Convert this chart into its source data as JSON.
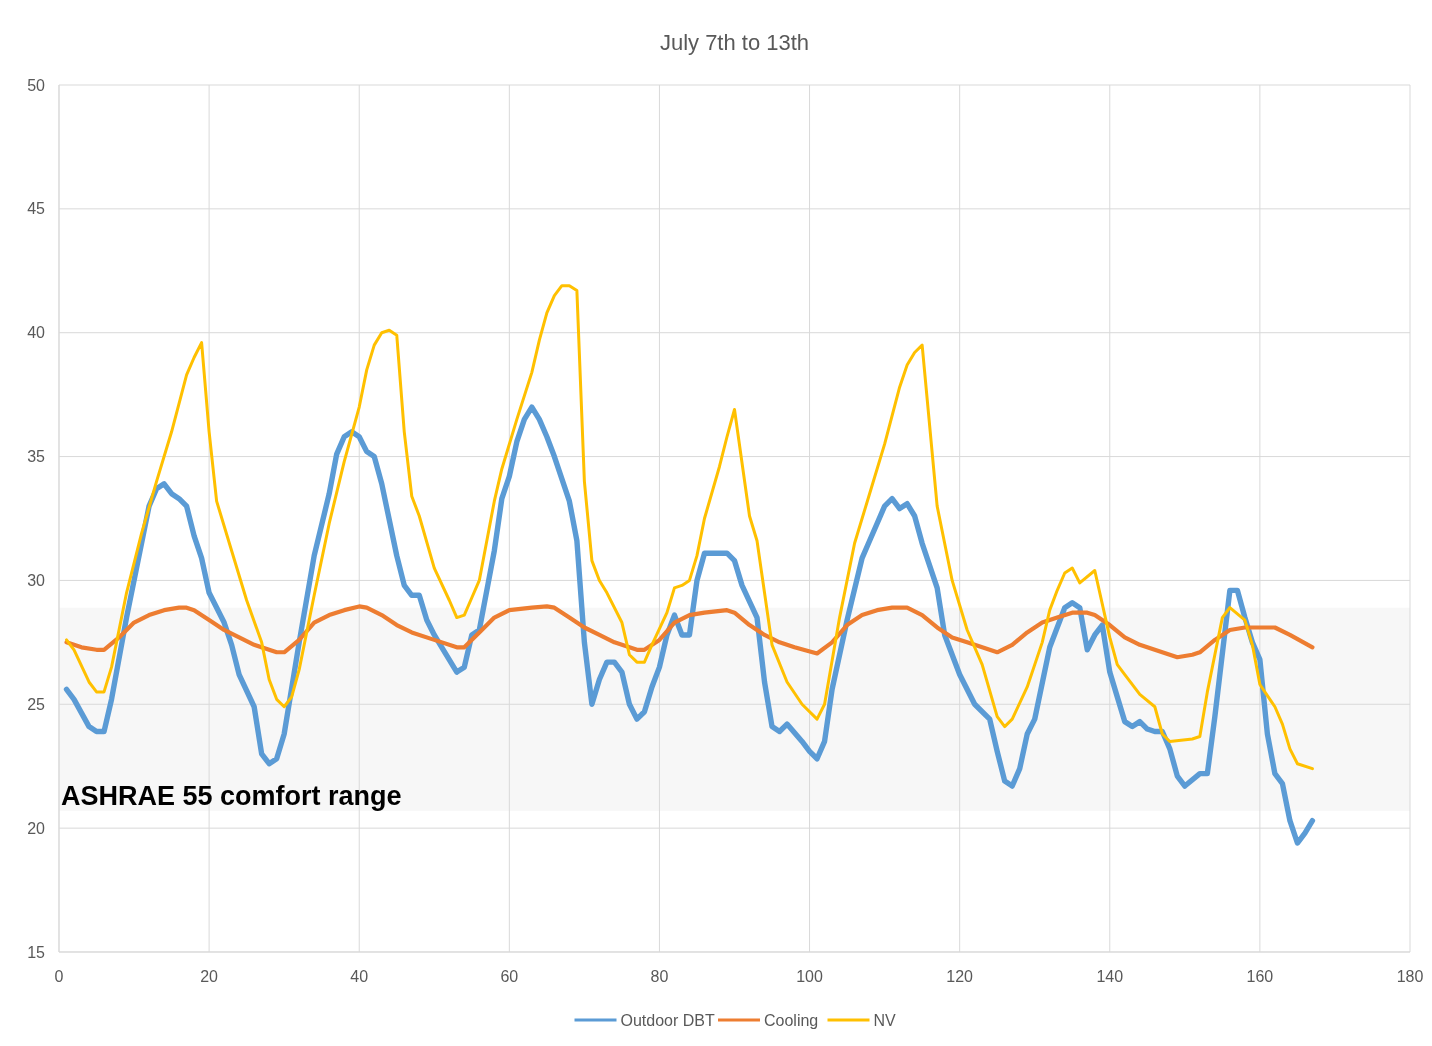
{
  "chart_data": {
    "type": "line",
    "title": "July 7th to 13th",
    "xlim": [
      0,
      180
    ],
    "xticks": [
      0,
      20,
      40,
      60,
      80,
      100,
      120,
      140,
      160,
      180
    ],
    "ylim": [
      15,
      50
    ],
    "yticks": [
      15,
      20,
      25,
      30,
      35,
      40,
      45,
      50
    ],
    "grid": true,
    "legend": "bottom",
    "line_style": "solid",
    "marker": "none",
    "bands": [
      {
        "axis": "y",
        "from": 20.7,
        "to": 28.9,
        "label": "ASHRAE 55 comfort range",
        "color": "#f7f7f7"
      }
    ],
    "series": [
      {
        "name": "Outdoor DBT",
        "color": "#5b9bd5",
        "x": [
          1,
          2,
          4,
          5,
          6,
          7,
          9,
          11,
          12,
          13,
          14,
          15,
          16,
          17,
          18,
          19,
          20,
          22,
          23,
          24,
          26,
          27,
          28,
          29,
          30,
          32,
          34,
          36,
          37,
          38,
          39,
          40,
          41,
          42,
          43,
          45,
          46,
          47,
          48,
          49,
          50,
          51,
          53,
          54,
          55,
          56,
          58,
          59,
          60,
          61,
          62,
          63,
          64,
          65,
          66,
          68,
          69,
          70,
          71,
          72,
          73,
          74,
          75,
          76,
          77,
          78,
          79,
          80,
          81,
          82,
          83,
          84,
          85,
          86,
          87,
          88,
          89,
          90,
          91,
          93,
          94,
          95,
          96,
          97,
          99,
          100,
          101,
          102,
          103,
          105,
          107,
          108,
          109,
          110,
          111,
          112,
          113,
          114,
          115,
          117,
          118,
          120,
          122,
          124,
          125,
          126,
          127,
          128,
          129,
          130,
          132,
          134,
          135,
          136,
          137,
          138,
          139,
          140,
          141,
          142,
          143,
          144,
          145,
          146,
          147,
          148,
          149,
          150,
          152,
          153,
          154,
          156,
          157,
          158,
          159,
          160,
          161,
          162,
          163,
          164,
          165,
          166,
          167
        ],
        "values": [
          25.6,
          25.2,
          24.1,
          23.9,
          23.9,
          25.2,
          28.5,
          31.5,
          33,
          33.7,
          33.9,
          33.5,
          33.3,
          33,
          31.8,
          30.9,
          29.5,
          28.3,
          27.4,
          26.2,
          24.9,
          23,
          22.6,
          22.8,
          23.8,
          27.5,
          31,
          33.5,
          35.1,
          35.8,
          36,
          35.8,
          35.2,
          35,
          33.9,
          31,
          29.8,
          29.4,
          29.4,
          28.4,
          27.8,
          27.3,
          26.3,
          26.5,
          27.8,
          28,
          31.2,
          33.3,
          34.2,
          35.6,
          36.5,
          37,
          36.5,
          35.8,
          35,
          33.2,
          31.6,
          27.5,
          25,
          26,
          26.7,
          26.7,
          26.3,
          25,
          24.4,
          24.7,
          25.7,
          26.5,
          27.8,
          28.6,
          27.8,
          27.8,
          30,
          31.1,
          31.1,
          31.1,
          31.1,
          30.8,
          29.8,
          28.5,
          25.9,
          24.1,
          23.9,
          24.2,
          23.5,
          23.1,
          22.8,
          23.5,
          25.6,
          28.4,
          30.9,
          31.6,
          32.3,
          33,
          33.3,
          32.9,
          33.1,
          32.6,
          31.5,
          29.7,
          27.8,
          26.2,
          25,
          24.4,
          23.1,
          21.9,
          21.7,
          22.4,
          23.8,
          24.4,
          27.3,
          28.9,
          29.1,
          28.9,
          27.2,
          27.8,
          28.2,
          26.3,
          25.3,
          24.3,
          24.1,
          24.3,
          24,
          23.9,
          23.9,
          23.2,
          22.1,
          21.7,
          22.2,
          22.2,
          24.5,
          29.6,
          29.6,
          28.5,
          27.5,
          26.8,
          23.8,
          22.2,
          21.8,
          20.3,
          19.4,
          19.8,
          20.3
        ]
      },
      {
        "name": "Cooling",
        "color": "#ed7d31",
        "x": [
          1,
          3,
          5,
          6,
          8,
          10,
          12,
          14,
          16,
          17,
          18,
          20,
          22,
          24,
          26,
          29,
          30,
          32,
          34,
          36,
          38,
          40,
          41,
          43,
          45,
          47,
          50,
          53,
          54,
          56,
          58,
          60,
          63,
          65,
          66,
          68,
          70,
          72,
          74,
          77,
          78,
          80,
          82,
          84,
          86,
          89,
          90,
          92,
          94,
          96,
          98,
          101,
          103,
          105,
          107,
          109,
          111,
          113,
          115,
          117,
          119,
          121,
          123,
          125,
          127,
          129,
          131,
          133,
          135,
          137,
          138,
          140,
          142,
          144,
          146,
          148,
          149,
          151,
          152,
          154,
          156,
          158,
          160,
          162,
          164,
          167
        ],
        "values": [
          27.5,
          27.3,
          27.2,
          27.2,
          27.7,
          28.3,
          28.6,
          28.8,
          28.9,
          28.9,
          28.8,
          28.4,
          28,
          27.7,
          27.4,
          27.1,
          27.1,
          27.6,
          28.3,
          28.6,
          28.8,
          28.95,
          28.9,
          28.6,
          28.2,
          27.9,
          27.6,
          27.3,
          27.3,
          27.9,
          28.5,
          28.8,
          28.9,
          28.95,
          28.9,
          28.5,
          28.1,
          27.8,
          27.5,
          27.2,
          27.2,
          27.6,
          28.3,
          28.6,
          28.7,
          28.8,
          28.7,
          28.2,
          27.8,
          27.5,
          27.3,
          27.05,
          27.5,
          28.2,
          28.6,
          28.8,
          28.9,
          28.9,
          28.6,
          28.1,
          27.7,
          27.5,
          27.3,
          27.1,
          27.4,
          27.9,
          28.3,
          28.5,
          28.7,
          28.7,
          28.6,
          28.2,
          27.7,
          27.4,
          27.2,
          27,
          26.9,
          27,
          27.1,
          27.6,
          28,
          28.1,
          28.1,
          28.1,
          27.8,
          27.3
        ]
      },
      {
        "name": "NV",
        "color": "#ffc000",
        "x": [
          1,
          2,
          4,
          5,
          6,
          7,
          9,
          11,
          13,
          15,
          17,
          18,
          19,
          20,
          21,
          23,
          25,
          27,
          28,
          29,
          30,
          31,
          32,
          34,
          36,
          38,
          40,
          41,
          42,
          43,
          44,
          45,
          46,
          47,
          48,
          50,
          52,
          53,
          54,
          55,
          56,
          58,
          59,
          61,
          63,
          64,
          65,
          66,
          67,
          68,
          69,
          70,
          71,
          72,
          73,
          75,
          76,
          77,
          78,
          79,
          81,
          82,
          83,
          84,
          85,
          86,
          88,
          89,
          90,
          92,
          93,
          95,
          97,
          99,
          101,
          102,
          104,
          106,
          108,
          110,
          112,
          113,
          114,
          115,
          117,
          119,
          121,
          123,
          125,
          126,
          127,
          129,
          131,
          132,
          133,
          134,
          135,
          136,
          138,
          140,
          141,
          142,
          144,
          146,
          147,
          148,
          151,
          152,
          153,
          154,
          155,
          156,
          158,
          159,
          160,
          162,
          163,
          164,
          165,
          167
        ],
        "values": [
          27.6,
          27.2,
          25.9,
          25.5,
          25.5,
          26.5,
          29.5,
          31.9,
          34,
          36,
          38.3,
          39,
          39.6,
          36,
          33.2,
          31.2,
          29.2,
          27.5,
          26,
          25.2,
          24.9,
          25.3,
          26.4,
          29.4,
          32.3,
          34.8,
          37,
          38.5,
          39.5,
          40,
          40.1,
          39.9,
          36,
          33.4,
          32.6,
          30.5,
          29.2,
          28.5,
          28.6,
          29.3,
          30,
          33.2,
          34.5,
          36.5,
          38.4,
          39.7,
          40.8,
          41.5,
          41.9,
          41.9,
          41.7,
          34,
          30.8,
          30,
          29.5,
          28.3,
          27,
          26.7,
          26.7,
          27.4,
          28.7,
          29.7,
          29.8,
          30,
          31,
          32.5,
          34.6,
          35.8,
          36.9,
          32.6,
          31.6,
          27.4,
          25.9,
          25,
          24.4,
          25,
          28.5,
          31.5,
          33.5,
          35.5,
          37.8,
          38.7,
          39.2,
          39.5,
          33,
          30,
          28,
          26.6,
          24.5,
          24.1,
          24.4,
          25.7,
          27.5,
          28.8,
          29.6,
          30.3,
          30.5,
          29.9,
          30.4,
          27.7,
          26.6,
          26.2,
          25.4,
          24.9,
          23.8,
          23.5,
          23.6,
          23.7,
          25.5,
          27,
          28.5,
          28.9,
          28.4,
          27.4,
          25.8,
          24.9,
          24.2,
          23.2,
          22.6,
          22.4
        ]
      }
    ]
  }
}
